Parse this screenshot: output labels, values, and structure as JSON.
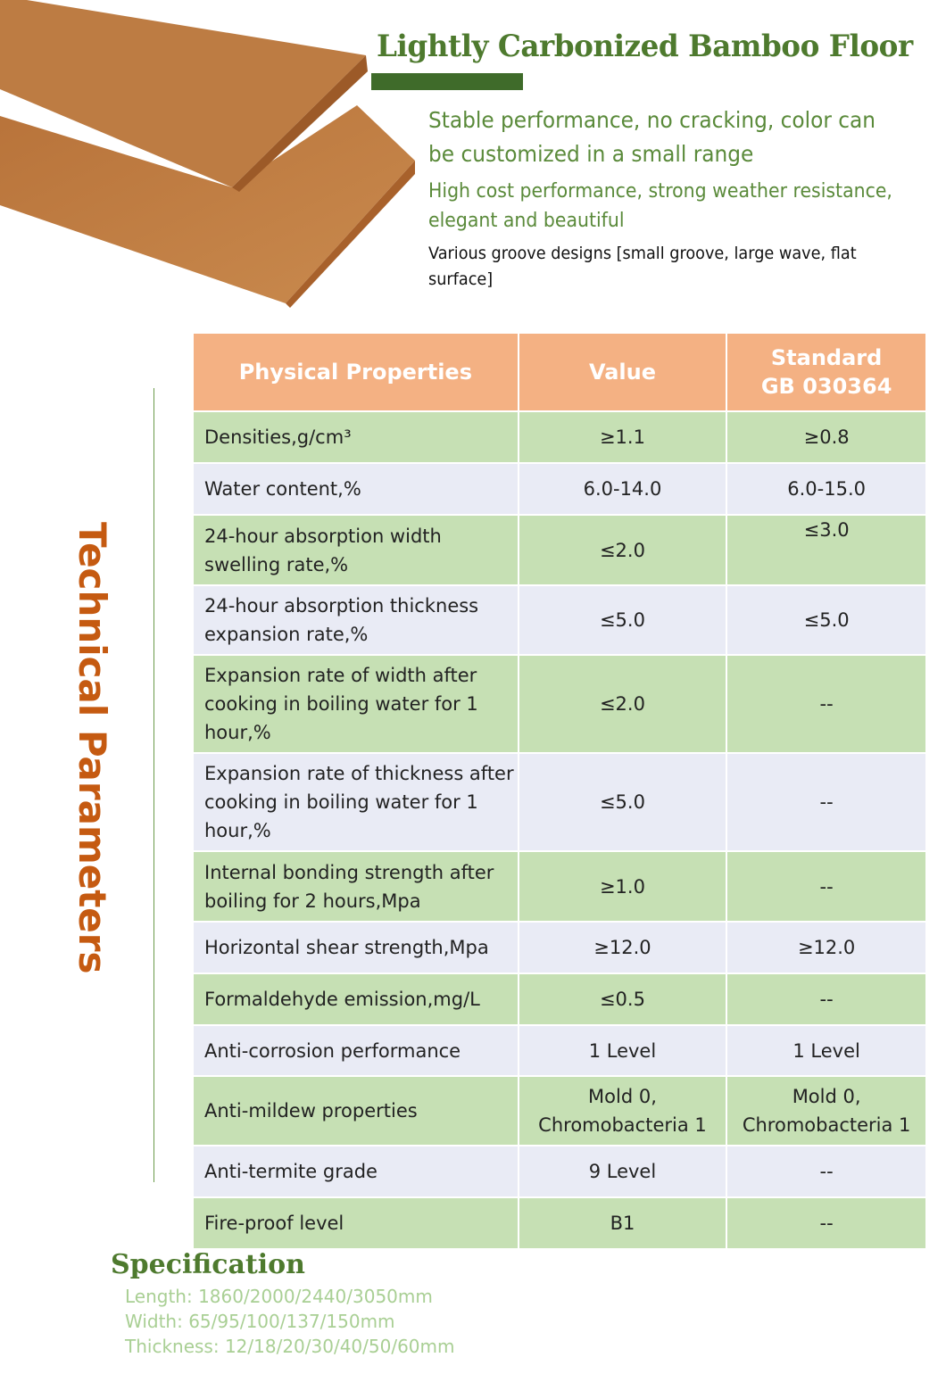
{
  "header": {
    "title": "Lightly Carbonized Bamboo Floor",
    "feature_1": "Stable performance, no cracking, color can be customized in a small range",
    "feature_2": "High cost performance, strong weather resistance, elegant and beautiful",
    "feature_3": "Various groove designs [small groove, large wave, flat surface]"
  },
  "side_label": "Technical Parameters",
  "table": {
    "headers": [
      "Physical Properties",
      "Value",
      "Standard GB 030364"
    ],
    "rows": [
      [
        "Densities,g/cm³",
        "≥1.1",
        "≥0.8"
      ],
      [
        "Water content,%",
        "6.0-14.0",
        "6.0-15.0"
      ],
      [
        "24-hour absorption width swelling rate,%",
        "≤2.0",
        "≤3.0"
      ],
      [
        "24-hour absorption thickness expansion rate,%",
        "≤5.0",
        "≤5.0"
      ],
      [
        "Expansion rate of width after cooking in boiling water for 1 hour,%",
        "≤2.0",
        "--"
      ],
      [
        "Expansion rate of thickness after cooking in boiling water for 1 hour,%",
        "≤5.0",
        "--"
      ],
      [
        "Internal bonding strength after boiling for 2 hours,Mpa",
        "≥1.0",
        "--"
      ],
      [
        "Horizontal shear strength,Mpa",
        "≥12.0",
        "≥12.0"
      ],
      [
        "Formaldehyde emission,mg/L",
        "≤0.5",
        "--"
      ],
      [
        "Anti-corrosion performance",
        "1 Level",
        "1 Level"
      ],
      [
        "Anti-mildew properties",
        "Mold 0, Chromobacteria 1",
        "Mold 0, Chromobacteria 1"
      ],
      [
        "Anti-termite grade",
        "9 Level",
        "--"
      ],
      [
        "Fire-proof level",
        "B1",
        "--"
      ]
    ]
  },
  "specification": {
    "title": "Specification",
    "length": "Length: 1860/2000/2440/3050mm",
    "width": "Width: 65/95/100/137/150mm",
    "thickness": "Thickness: 12/18/20/30/40/50/60mm"
  },
  "colors": {
    "header_bg": "#f4b183",
    "row_green": "#c6e0b4",
    "row_light": "#e9ebf5",
    "accent_orange": "#c55a11",
    "title_green": "#4e7a2e"
  }
}
